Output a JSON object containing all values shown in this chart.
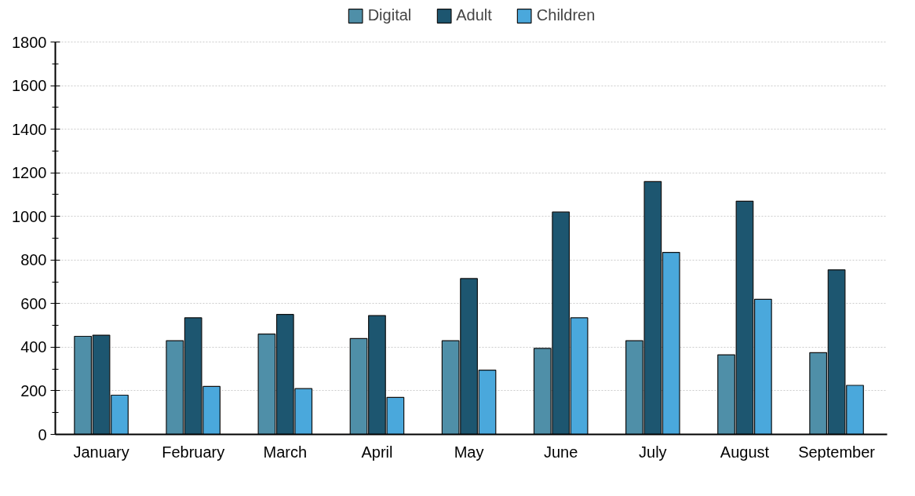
{
  "chart_data": {
    "type": "bar",
    "categories": [
      "January",
      "February",
      "March",
      "April",
      "May",
      "June",
      "July",
      "August",
      "September"
    ],
    "series": [
      {
        "name": "Digital",
        "color": "#4f8fa8",
        "values": [
          450,
          430,
          460,
          440,
          430,
          395,
          430,
          365,
          375
        ]
      },
      {
        "name": "Adult",
        "color": "#1d5670",
        "values": [
          455,
          535,
          550,
          545,
          715,
          1020,
          1160,
          1070,
          755
        ]
      },
      {
        "name": "Children",
        "color": "#4aa8dc",
        "values": [
          180,
          220,
          210,
          170,
          295,
          535,
          835,
          620,
          225
        ]
      }
    ],
    "ylim": [
      0,
      1800
    ],
    "yticks": [
      0,
      200,
      400,
      600,
      800,
      1000,
      1200,
      1400,
      1600,
      1800
    ],
    "grid": "y",
    "legend": "top"
  }
}
